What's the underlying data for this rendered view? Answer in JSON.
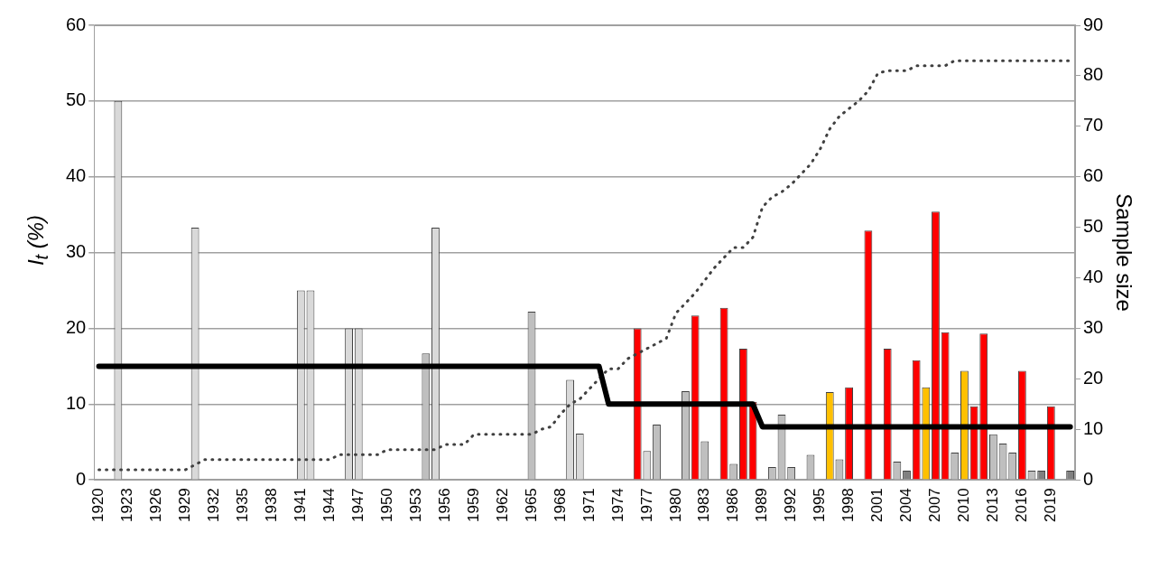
{
  "chart_data": {
    "type": "bar",
    "ylabel": "I$_{t}$ (%)",
    "y2label": "Sample size",
    "categories": [
      "1920",
      null,
      null,
      "1923",
      null,
      null,
      "1926",
      null,
      null,
      "1929",
      null,
      null,
      "1932",
      null,
      null,
      "1935",
      null,
      null,
      "1938",
      null,
      null,
      "1941",
      null,
      null,
      "1944",
      null,
      null,
      "1947",
      null,
      null,
      "1950",
      null,
      null,
      "1953",
      null,
      null,
      "1956",
      null,
      null,
      "1959",
      null,
      null,
      "1962",
      null,
      null,
      "1965",
      null,
      null,
      "1968",
      null,
      null,
      "1971",
      null,
      null,
      "1974",
      null,
      null,
      "1977",
      null,
      null,
      "1980",
      null,
      null,
      "1983",
      null,
      null,
      "1986",
      null,
      null,
      "1989",
      null,
      null,
      "1992",
      null,
      null,
      "1995",
      null,
      null,
      "1998",
      null,
      null,
      "2001",
      null,
      null,
      "2004",
      null,
      null,
      "2007",
      null,
      null,
      "2010",
      null,
      null,
      "2013",
      null,
      null,
      "2016",
      null,
      null,
      "2019",
      null,
      null
    ],
    "series": [
      {
        "values": [
          null,
          null,
          50,
          null,
          null,
          null,
          null,
          null,
          null,
          null,
          33.3,
          null,
          null,
          null,
          null,
          null,
          null,
          null,
          null,
          null,
          null,
          25,
          25,
          null,
          null,
          null,
          20,
          20,
          null,
          null,
          null,
          null,
          null,
          null,
          16.7,
          33.3,
          null,
          null,
          null,
          null,
          null,
          null,
          null,
          null,
          null,
          22.2,
          null,
          null,
          null,
          13.2,
          6.1,
          null,
          null,
          null,
          null,
          null,
          20,
          3.8,
          7.3,
          null,
          null,
          11.7,
          21.7,
          5.1,
          null,
          22.7,
          2.1,
          17.3,
          10.3,
          null,
          1.7,
          8.6,
          1.7,
          null,
          3.3,
          null,
          11.6,
          2.7,
          12.2,
          null,
          32.9,
          null,
          17.3,
          2.4,
          1.2,
          15.8,
          12.2,
          35.4,
          19.5,
          3.6,
          14.4,
          9.7,
          19.3,
          6,
          4.8,
          3.6,
          14.4,
          1.2,
          1.2,
          9.7,
          null,
          1.2
        ],
        "colors": [
          null,
          null,
          "#d9d9d9",
          null,
          null,
          null,
          null,
          null,
          null,
          null,
          "#d9d9d9",
          null,
          null,
          null,
          null,
          null,
          null,
          null,
          null,
          null,
          null,
          "#d9d9d9",
          "#d9d9d9",
          null,
          null,
          null,
          "#d9d9d9",
          "#d9d9d9",
          null,
          null,
          null,
          null,
          null,
          null,
          "#bfbfbf",
          "#d9d9d9",
          null,
          null,
          null,
          null,
          null,
          null,
          null,
          null,
          null,
          "#bfbfbf",
          null,
          null,
          null,
          "#d9d9d9",
          "#d9d9d9",
          null,
          null,
          null,
          null,
          null,
          "#ff0000",
          "#d9d9d9",
          "#bfbfbf",
          null,
          null,
          "#bfbfbf",
          "#ff0000",
          "#bfbfbf",
          null,
          "#ff0000",
          "#bfbfbf",
          "#ff0000",
          "#ff0000",
          null,
          "#bfbfbf",
          "#bfbfbf",
          "#bfbfbf",
          null,
          "#bfbfbf",
          null,
          "#ffc000",
          "#bfbfbf",
          "#ff0000",
          null,
          "#ff0000",
          null,
          "#ff0000",
          "#bfbfbf",
          "#808080",
          "#ff0000",
          "#ffc000",
          "#ff0000",
          "#ff0000",
          "#bfbfbf",
          "#ffc000",
          "#ff0000",
          "#ff0000",
          "#bfbfbf",
          "#bfbfbf",
          "#bfbfbf",
          "#ff0000",
          "#bfbfbf",
          "#808080",
          "#ff0000",
          null,
          "#808080"
        ]
      },
      {
        "type": "line",
        "color": "#000000",
        "line_style": "solid",
        "values": [
          15,
          15,
          15,
          15,
          15,
          15,
          15,
          15,
          15,
          15,
          15,
          15,
          15,
          15,
          15,
          15,
          15,
          15,
          15,
          15,
          15,
          15,
          15,
          15,
          15,
          15,
          15,
          15,
          15,
          15,
          15,
          15,
          15,
          15,
          15,
          15,
          15,
          15,
          15,
          15,
          15,
          15,
          15,
          15,
          15,
          15,
          15,
          15,
          15,
          15,
          15,
          15,
          15,
          10,
          10,
          10,
          10,
          10,
          10,
          10,
          10,
          10,
          10,
          10,
          10,
          10,
          10,
          10,
          10,
          7,
          7,
          7,
          7,
          7,
          7,
          7,
          7,
          7,
          7,
          7,
          7,
          7,
          7,
          7,
          7,
          7,
          7,
          7,
          7,
          7,
          7,
          7,
          7,
          7,
          7,
          7,
          7,
          7,
          7,
          7,
          7,
          7
        ]
      },
      {
        "type": "line",
        "axis": "y2",
        "color": "#404040",
        "line_style": "dotted",
        "values": [
          2,
          2,
          2,
          2,
          2,
          2,
          2,
          2,
          2,
          2,
          3,
          4,
          4,
          4,
          4,
          4,
          4,
          4,
          4,
          4,
          4,
          4,
          4,
          4,
          4,
          5,
          5,
          5,
          5,
          5,
          6,
          6,
          6,
          6,
          6,
          6,
          7,
          7,
          7,
          9,
          9,
          9,
          9,
          9,
          9,
          9,
          10,
          10.5,
          13,
          15,
          16,
          18,
          20,
          22,
          22,
          24,
          25,
          26,
          27,
          28,
          33,
          35,
          37,
          39.5,
          42,
          44,
          46,
          46,
          48,
          54,
          56,
          57,
          58.5,
          60.5,
          62.5,
          65.5,
          69.5,
          72,
          73.5,
          75,
          77,
          80.5,
          81,
          81,
          81,
          82,
          82,
          82,
          82,
          83,
          83,
          83,
          83,
          83,
          83,
          83,
          83,
          83,
          83,
          83,
          83,
          83
        ]
      }
    ],
    "ylim": [
      0,
      60
    ],
    "yticks": [
      0,
      10,
      20,
      30,
      40,
      50,
      60
    ],
    "y2lim": [
      0,
      90
    ],
    "y2ticks": [
      0,
      10,
      20,
      30,
      40,
      50,
      60,
      70,
      80,
      90
    ],
    "grid": "y",
    "legend": false,
    "marker": "none"
  }
}
